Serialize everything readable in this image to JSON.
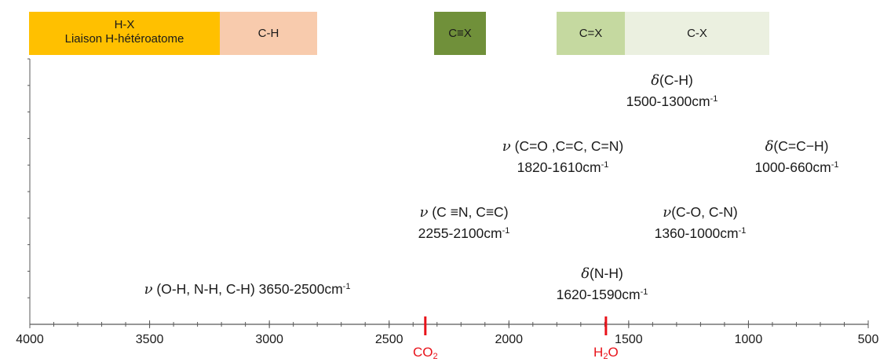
{
  "regions": {
    "hx": {
      "line1": "H-X",
      "line2": "Liaison H-hétéroatome",
      "color": "#ffc000"
    },
    "ch": {
      "label": "C-H",
      "color": "#f8cbad"
    },
    "ctx": {
      "label": "C≡X",
      "color": "#70903a"
    },
    "cdx": {
      "label": "C=X",
      "color": "#c5d9a0"
    },
    "cx": {
      "label": "C-X",
      "color": "#ebf0e0"
    }
  },
  "bands": {
    "ch_bend": {
      "symbol": "δ",
      "label": "(C-H)",
      "range": "1500-1300cm",
      "exp": "-1"
    },
    "c_double": {
      "symbol": "ν",
      "label": " (C=O ,C=C, C=N)",
      "range": "1820-1610cm",
      "exp": "-1"
    },
    "cch_bend": {
      "symbol": "δ",
      "label": "(C=C−H)",
      "range": "1000-660cm",
      "exp": "-1"
    },
    "triple": {
      "symbol": "ν",
      "label": " (C ≡N, C≡C)",
      "range": "2255-2100cm",
      "exp": "-1"
    },
    "co_cn": {
      "symbol": "ν",
      "label": "(C-O, C-N)",
      "range": "1360-1000cm",
      "exp": "-1"
    },
    "nh_bend": {
      "symbol": "δ",
      "label": "(N-H)",
      "range": "1620-1590cm",
      "exp": "-1"
    },
    "oh_nh_ch": {
      "symbol": "ν",
      "label": " (O-H, N-H, C-H) 3650-2500cm",
      "exp": "-1"
    }
  },
  "axis": {
    "min": 500,
    "max": 4000,
    "reversed": true,
    "ticks": [
      "4000",
      "3500",
      "3000",
      "2500",
      "2000",
      "1500",
      "1000",
      "500"
    ],
    "line_color": "#595959"
  },
  "markers": {
    "co2": {
      "base": "CO",
      "sub": "2",
      "wavenumber": 2349,
      "color": "#e8121a"
    },
    "h2o": {
      "base": "H",
      "sub": "2",
      "tail": "O",
      "wavenumber": 1595,
      "color": "#e8121a"
    }
  }
}
